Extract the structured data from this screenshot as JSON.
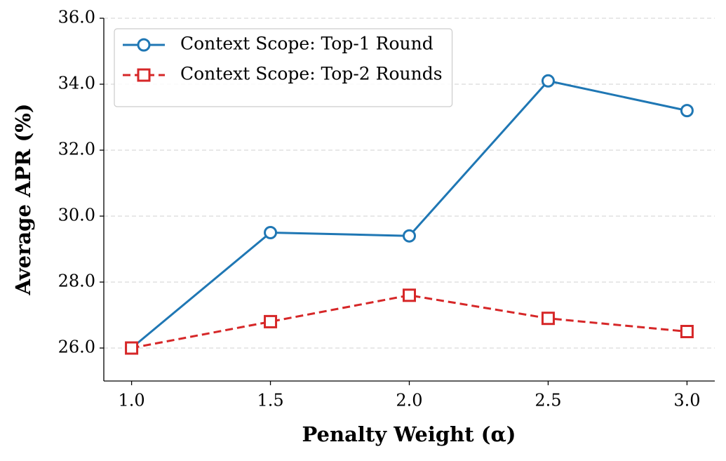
{
  "chart_data": {
    "type": "line",
    "x_label": "Penalty Weight (α)",
    "y_label": "Average APR (%)",
    "x": [
      1.0,
      1.5,
      2.0,
      2.5,
      3.0
    ],
    "series": [
      {
        "name": "Context Scope: Top-1 Round",
        "color": "#1f77b4",
        "marker": "circle",
        "linestyle": "solid",
        "values": [
          26.0,
          29.5,
          29.4,
          34.1,
          33.2
        ]
      },
      {
        "name": "Context Scope: Top-2 Rounds",
        "color": "#d62728",
        "marker": "square",
        "linestyle": "dashed",
        "values": [
          26.0,
          26.8,
          27.6,
          26.9,
          26.5
        ]
      }
    ],
    "xlim": [
      0.9,
      3.1
    ],
    "ylim": [
      25.0,
      36.0
    ],
    "xticks": [
      {
        "value": 1.0,
        "label": "1.0"
      },
      1.5,
      {
        "value": 2.0,
        "label": "2.0"
      },
      2.5,
      {
        "value": 3.0,
        "label": "3.0"
      }
    ],
    "yticks": [
      {
        "value": 26,
        "label": "26.0"
      },
      {
        "value": 28,
        "label": "28.0"
      },
      {
        "value": 30,
        "label": "30.0"
      },
      {
        "value": 32,
        "label": "32.0"
      },
      {
        "value": 34,
        "label": "34.0"
      },
      {
        "value": 36,
        "label": "36.0"
      }
    ],
    "grid": true,
    "legend": "upper left"
  }
}
